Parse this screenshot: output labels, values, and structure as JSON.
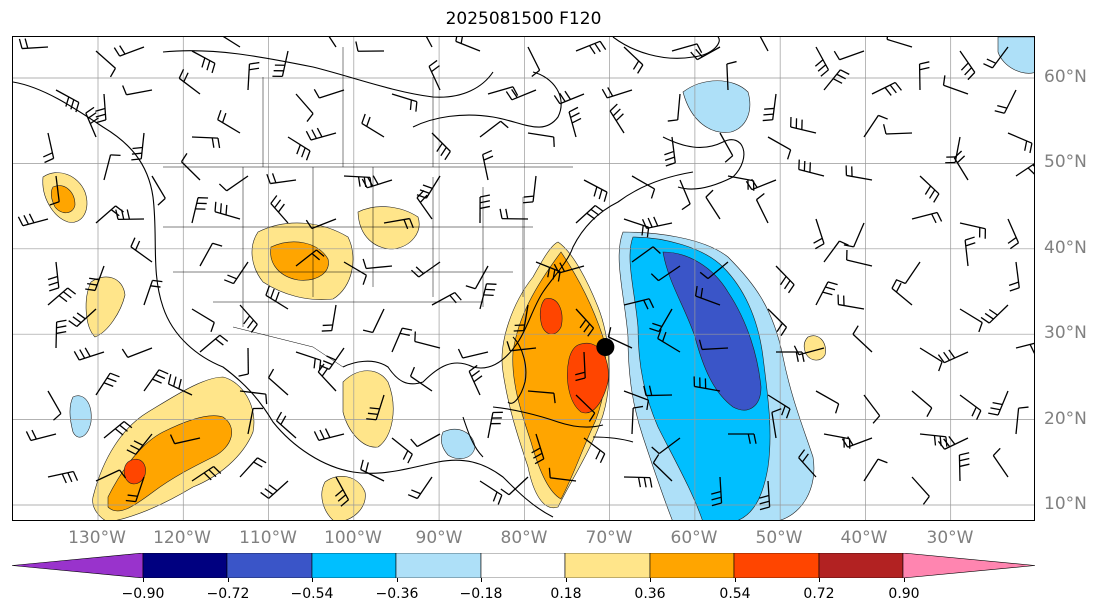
{
  "title": "2025081500 F120",
  "lat_labels": [
    "60°N",
    "50°N",
    "40°N",
    "30°N",
    "20°N",
    "10°N"
  ],
  "lon_labels": [
    "130°W",
    "120°W",
    "110°W",
    "100°W",
    "90°W",
    "80°W",
    "70°W",
    "60°W",
    "50°W",
    "40°W",
    "30°W"
  ],
  "colorbar": {
    "ticks": [
      "−0.90",
      "−0.72",
      "−0.54",
      "−0.36",
      "−0.18",
      "0.18",
      "0.36",
      "0.54",
      "0.72",
      "0.90"
    ],
    "colors": [
      "#9933cc",
      "#000080",
      "#3a55c8",
      "#00bfff",
      "#aee0f8",
      "#ffffff",
      "#ffe58a",
      "#ffa500",
      "#ff4500",
      "#b22222",
      "#ff85b0"
    ]
  },
  "marker": {
    "name": "black-dot",
    "lon": -70.5,
    "lat": 28.5
  }
}
